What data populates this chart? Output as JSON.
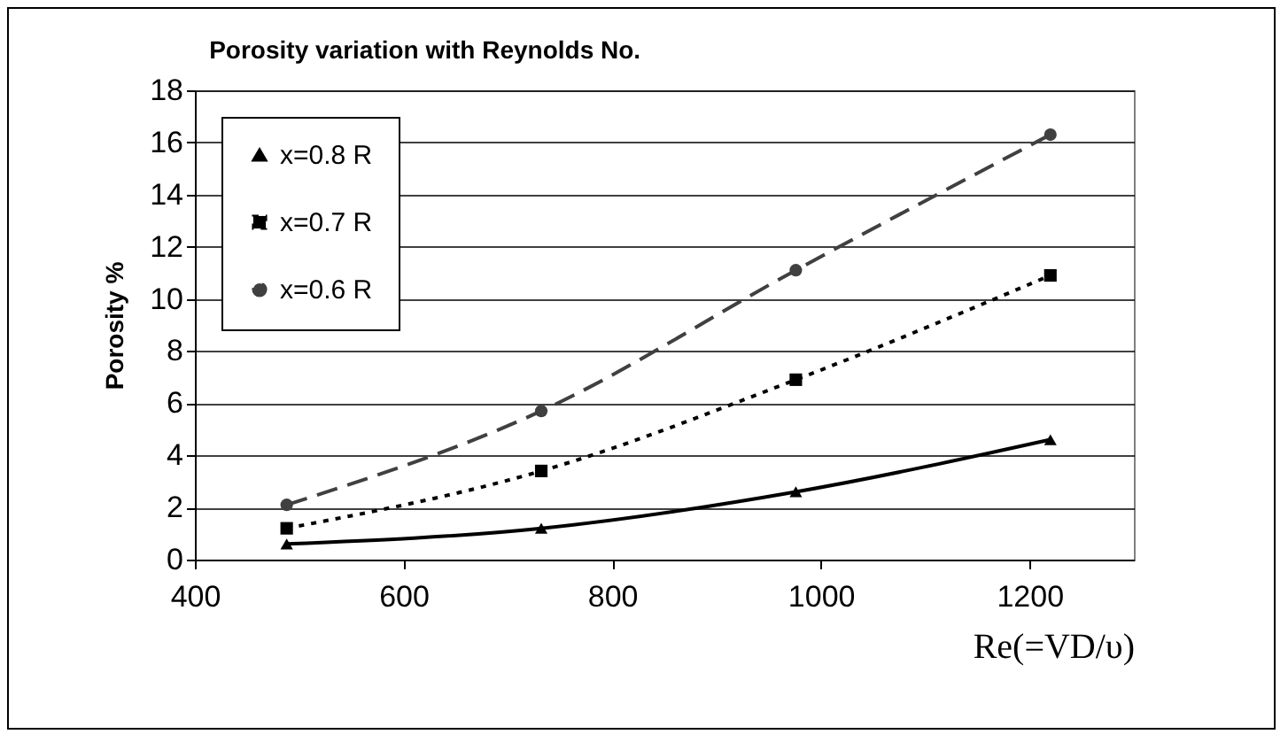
{
  "chart_data": {
    "type": "line",
    "title": "Porosity  variation with Reynolds No.",
    "xlabel": "Re(=VD/υ)",
    "ylabel": "Porosity %",
    "x": [
      488,
      732,
      976,
      1220
    ],
    "series": [
      {
        "name": "x=0.8 R",
        "color": "#000000",
        "values": [
          0.6,
          1.2,
          2.6,
          4.6
        ],
        "marker": "triangle",
        "line_style": "solid"
      },
      {
        "name": "x=0.7 R",
        "color": "#000000",
        "values": [
          1.2,
          3.4,
          6.9,
          10.9
        ],
        "marker": "square",
        "line_style": "dotted"
      },
      {
        "name": "x=0.6 R",
        "color": "#404040",
        "values": [
          2.1,
          5.7,
          11.1,
          16.3
        ],
        "marker": "circle",
        "line_style": "dashed"
      }
    ],
    "xlim": [
      400,
      1300
    ],
    "xticks": [
      400,
      600,
      800,
      1000,
      1200
    ],
    "ylim": [
      0,
      18
    ],
    "yticks": [
      0,
      2,
      4,
      6,
      8,
      10,
      12,
      14,
      16,
      18
    ],
    "grid": "y",
    "legend": "top left"
  }
}
